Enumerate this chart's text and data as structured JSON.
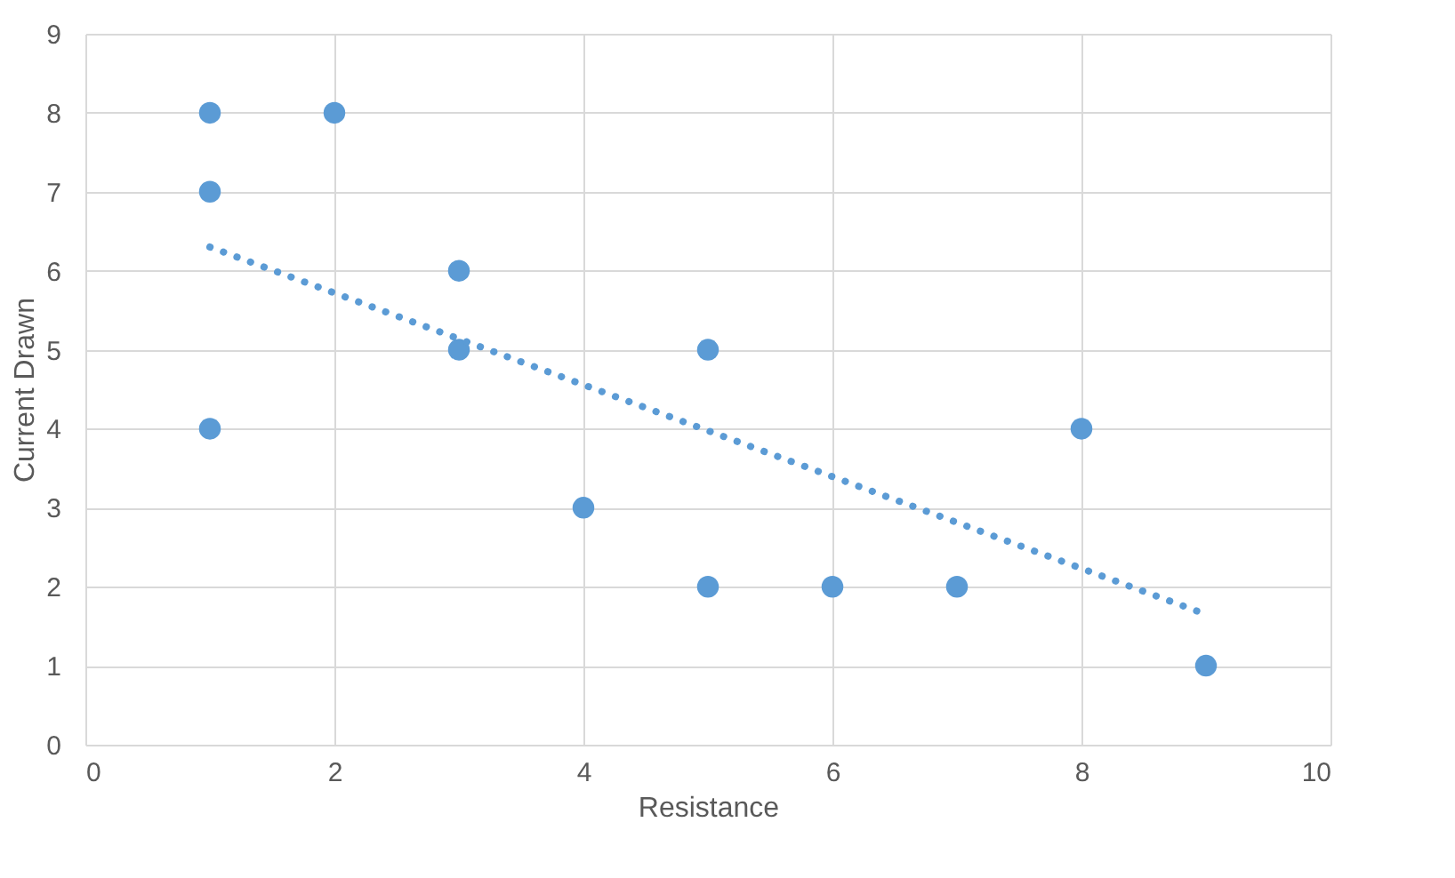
{
  "chart_data": {
    "type": "scatter",
    "xlabel": "Resistance",
    "ylabel": "Current Drawn",
    "xlim": [
      0,
      10
    ],
    "xticks": [
      0,
      2,
      4,
      6,
      8,
      10
    ],
    "ylim": [
      0,
      9
    ],
    "yticks": [
      0,
      1,
      2,
      3,
      4,
      5,
      6,
      7,
      8,
      9
    ],
    "grid": true,
    "series": [
      {
        "color": "#5b9bd5",
        "marker": "circle",
        "x": [
          1,
          2,
          1,
          3,
          3,
          5,
          1,
          8,
          4,
          5,
          6,
          7,
          9
        ],
        "values": [
          8,
          8,
          7,
          6,
          5,
          5,
          4,
          4,
          3,
          2,
          2,
          2,
          1
        ]
      },
      {
        "type": "line",
        "line_style": "dotted",
        "color": "#5b9bd5",
        "x": [
          1,
          9
        ],
        "values": [
          6.3,
          1.65
        ]
      }
    ]
  }
}
